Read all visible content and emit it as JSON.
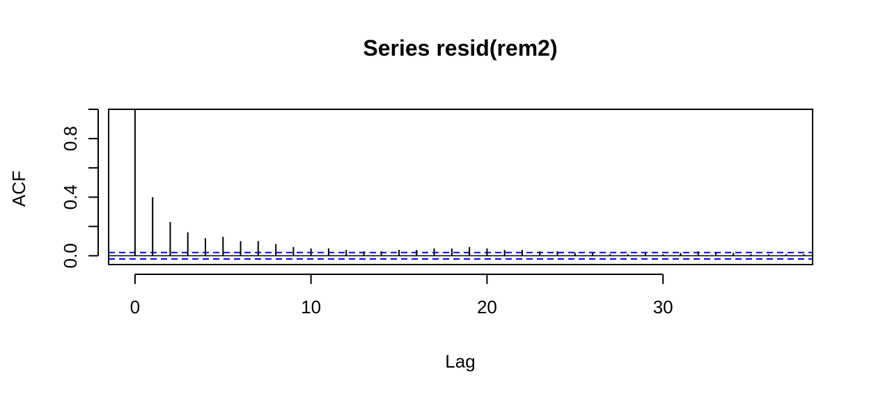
{
  "chart_data": {
    "type": "bar",
    "title": "Series  resid(rem2)",
    "xlabel": "Lag",
    "ylabel": "ACF",
    "xlim": [
      -1.5,
      38.5
    ],
    "ylim": [
      -0.06,
      1.0
    ],
    "x_ticks": [
      0,
      10,
      20,
      30
    ],
    "x_tick_labels": [
      "0",
      "10",
      "20",
      "30"
    ],
    "y_ticks": [
      0.0,
      0.2,
      0.4,
      0.6,
      0.8,
      1.0
    ],
    "y_tick_labels": [
      "0.0",
      "",
      "0.4",
      "",
      "0.8",
      ""
    ],
    "series": [
      {
        "lags": [
          0,
          1,
          2,
          3,
          4,
          5,
          6,
          7,
          8,
          9,
          10,
          11,
          12,
          13,
          14,
          15,
          16,
          17,
          18,
          19,
          20,
          21,
          22,
          23,
          24,
          25,
          26,
          27,
          28,
          29,
          30,
          31,
          32,
          33,
          34,
          35,
          36,
          37,
          38
        ],
        "values": [
          1.0,
          0.4,
          0.23,
          0.16,
          0.12,
          0.13,
          0.1,
          0.1,
          0.08,
          0.06,
          0.05,
          0.05,
          0.04,
          0.03,
          0.03,
          0.04,
          0.04,
          0.05,
          0.05,
          0.06,
          0.05,
          0.04,
          0.04,
          0.03,
          0.03,
          0.02,
          0.02,
          0.01,
          0.01,
          0.02,
          0.01,
          0.02,
          0.03,
          0.02,
          0.02,
          0.01,
          0.01,
          0.01,
          0.01
        ]
      }
    ],
    "confidence_band": 0.022,
    "colors": {
      "bars": "#000000",
      "ci": "#0000ff",
      "zero_line": "#000000"
    }
  }
}
